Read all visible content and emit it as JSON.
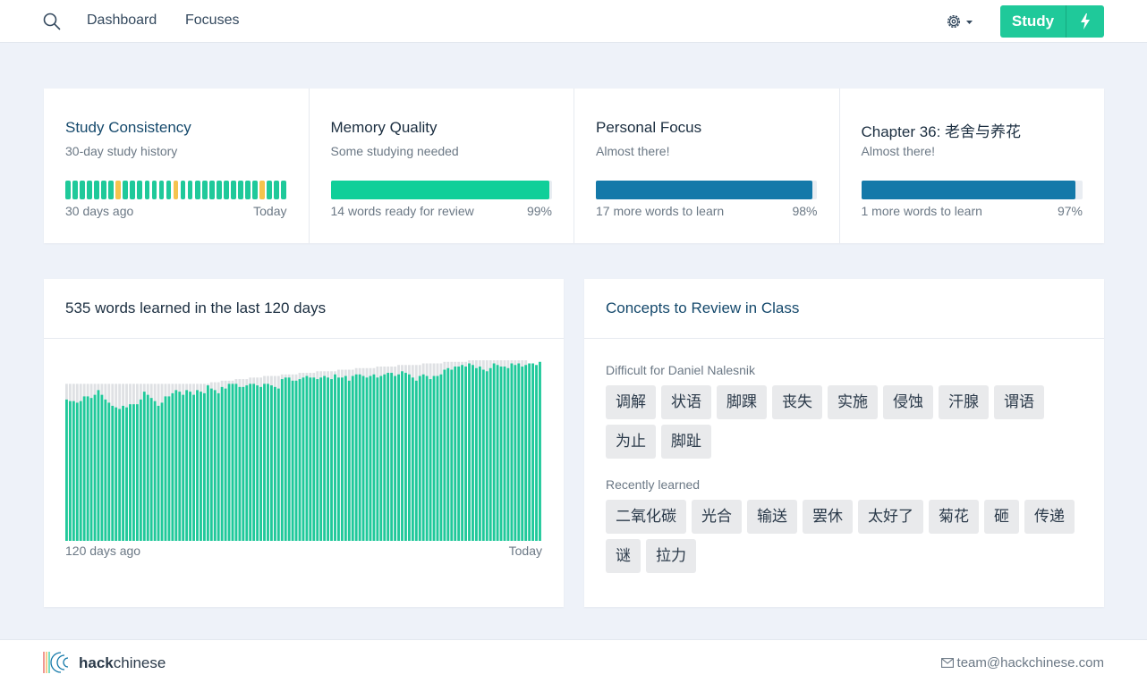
{
  "nav": {
    "links": [
      "Dashboard",
      "Focuses"
    ],
    "study_label": "Study"
  },
  "colors": {
    "accent": "#1fc99a",
    "blue": "#1479a9",
    "missed": "#f5c34d",
    "chip_bg": "#e9eaec"
  },
  "stats": [
    {
      "title": "Study Consistency",
      "subtitle": "30-day study history",
      "left": "30 days ago",
      "right": "Today",
      "history": [
        "s",
        "s",
        "s",
        "s",
        "s",
        "s",
        "s",
        "m",
        "s",
        "s",
        "s",
        "s",
        "s",
        "s",
        "s",
        "m",
        "s",
        "s",
        "s",
        "s",
        "s",
        "s",
        "s",
        "s",
        "s",
        "s",
        "s",
        "m",
        "s",
        "s",
        "s"
      ]
    },
    {
      "title": "Memory Quality",
      "subtitle": "Some studying needed",
      "left": "14 words ready for review",
      "right": "99%",
      "progress": 0.99,
      "bar_color": "#10cf99"
    },
    {
      "title": "Personal Focus",
      "subtitle": "Almost there!",
      "left": "17 more words to learn",
      "right": "98%",
      "progress": 0.98,
      "bar_color": "#1479a9"
    },
    {
      "title": "Chapter 36: 老舍与养花",
      "subtitle": "Almost there!",
      "left": "1 more words to learn",
      "right": "97%",
      "progress": 0.97,
      "bar_color": "#1479a9"
    }
  ],
  "words_panel": {
    "title": "535 words learned in the last 120 days",
    "left": "120 days ago",
    "right": "Today"
  },
  "chart_data": {
    "type": "bar",
    "title": "535 words learned in the last 120 days",
    "x_start_label": "120 days ago",
    "x_end_label": "Today",
    "series": [
      {
        "values": [
          0.9,
          0.89,
          0.89,
          0.88,
          0.89,
          0.92,
          0.92,
          0.91,
          0.93,
          0.96,
          0.93,
          0.9,
          0.88,
          0.86,
          0.85,
          0.84,
          0.86,
          0.85,
          0.87,
          0.87,
          0.87,
          0.9,
          0.95,
          0.93,
          0.91,
          0.89,
          0.86,
          0.88,
          0.92,
          0.92,
          0.94,
          0.96,
          0.95,
          0.93,
          0.96,
          0.95,
          0.93,
          0.96,
          0.95,
          0.94,
          0.99,
          0.97,
          0.96,
          0.94,
          0.98,
          0.97,
          1.0,
          1.0,
          1.0,
          0.98,
          0.98,
          0.99,
          1.0,
          1.0,
          0.99,
          0.98,
          1.0,
          1.0,
          0.99,
          0.98,
          0.97,
          1.03,
          1.04,
          1.04,
          1.02,
          1.02,
          1.03,
          1.04,
          1.05,
          1.04,
          1.04,
          1.03,
          1.04,
          1.05,
          1.04,
          1.03,
          1.06,
          1.04,
          1.04,
          1.05,
          1.02,
          1.05,
          1.06,
          1.06,
          1.05,
          1.04,
          1.05,
          1.06,
          1.04,
          1.05,
          1.06,
          1.07,
          1.07,
          1.05,
          1.06,
          1.08,
          1.07,
          1.06,
          1.04,
          1.02,
          1.05,
          1.06,
          1.05,
          1.03,
          1.05,
          1.05,
          1.06,
          1.09,
          1.1,
          1.09,
          1.11,
          1.11,
          1.12,
          1.11,
          1.13,
          1.12,
          1.1,
          1.11,
          1.09,
          1.08,
          1.1,
          1.13,
          1.12,
          1.11,
          1.11,
          1.1,
          1.13,
          1.12,
          1.13,
          1.11,
          1.12,
          1.13,
          1.13,
          1.12,
          1.14
        ]
      },
      {
        "values": [
          1.0,
          1.0,
          1.0,
          1.0,
          1.0,
          1.0,
          1.0,
          1.0,
          1.0,
          1.0,
          1.0,
          1.0,
          1.0,
          1.0,
          1.0,
          1.0,
          1.0,
          1.0,
          1.0,
          1.0,
          1.0,
          1.0,
          1.0,
          1.0,
          1.0,
          1.0,
          1.0,
          1.0,
          1.0,
          1.0,
          1.0,
          1.0,
          1.0,
          1.0,
          1.0,
          1.0,
          1.0,
          1.0,
          1.0,
          1.0,
          1.0,
          1.01,
          1.01,
          1.01,
          1.02,
          1.02,
          1.02,
          1.02,
          1.03,
          1.03,
          1.03,
          1.03,
          1.04,
          1.04,
          1.04,
          1.04,
          1.05,
          1.05,
          1.05,
          1.05,
          1.05,
          1.06,
          1.06,
          1.06,
          1.06,
          1.06,
          1.07,
          1.07,
          1.07,
          1.07,
          1.07,
          1.08,
          1.08,
          1.08,
          1.08,
          1.08,
          1.08,
          1.09,
          1.09,
          1.09,
          1.09,
          1.09,
          1.1,
          1.1,
          1.1,
          1.1,
          1.1,
          1.1,
          1.11,
          1.11,
          1.11,
          1.11,
          1.11,
          1.11,
          1.12,
          1.12,
          1.12,
          1.12,
          1.12,
          1.12,
          1.12,
          1.13,
          1.13,
          1.13,
          1.13,
          1.13,
          1.13,
          1.14,
          1.14,
          1.14,
          1.14,
          1.14,
          1.14,
          1.14,
          1.15,
          1.15,
          1.15,
          1.15,
          1.15,
          1.15,
          1.15,
          1.15,
          1.15,
          1.15,
          1.15,
          1.15,
          1.15,
          1.15,
          1.15,
          1.15,
          1.15
        ]
      }
    ],
    "colors": [
      "#1fc99a",
      "#dfe1e4"
    ],
    "ylim": [
      0,
      1.15
    ]
  },
  "concepts_panel": {
    "title": "Concepts to Review in Class",
    "difficult_label": "Difficult for Daniel Nalesnik",
    "difficult": [
      "调解",
      "状语",
      "脚踝",
      "丧失",
      "实施",
      "侵蚀",
      "汗腺",
      "谓语",
      "为止",
      "脚趾"
    ],
    "recent_label": "Recently learned",
    "recent": [
      "二氧化碳",
      "光合",
      "输送",
      "罢休",
      "太好了",
      "菊花",
      "砸",
      "传递",
      "谜",
      "拉力"
    ]
  },
  "footer": {
    "brand_bold": "hack",
    "brand_light": "chinese",
    "email": "team@hackchinese.com"
  }
}
